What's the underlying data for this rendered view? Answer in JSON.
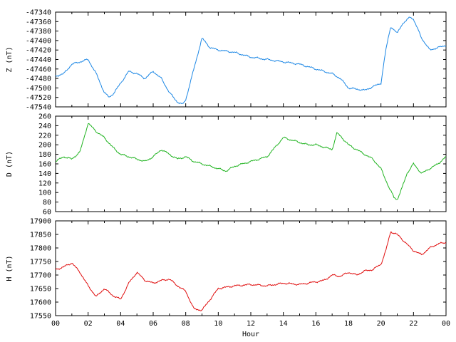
{
  "chart_data": [
    {
      "type": "line",
      "ylabel": "Z (nT)",
      "ylim": [
        -47540,
        -47340
      ],
      "yticks": [
        -47340,
        -47360,
        -47380,
        -47400,
        -47420,
        -47440,
        -47460,
        -47480,
        -47500,
        -47520,
        -47540
      ],
      "xlim": [
        0,
        24
      ],
      "series": [
        {
          "color": "#1e88e5",
          "x": [
            0,
            0.5,
            1.0,
            1.5,
            2.0,
            2.5,
            3.0,
            3.3,
            3.6,
            4.0,
            4.5,
            5.0,
            5.5,
            6.0,
            6.5,
            7.0,
            7.5,
            7.8,
            8.0,
            8.5,
            9.0,
            9.5,
            10.0,
            11.0,
            12.0,
            13.0,
            14.0,
            15.0,
            16.0,
            17.0,
            17.5,
            18.0,
            19.0,
            20.0,
            20.3,
            20.6,
            21.0,
            21.3,
            21.5,
            21.8,
            22.0,
            22.5,
            23.0,
            23.5,
            24.0
          ],
          "values": [
            -47475,
            -47470,
            -47450,
            -47445,
            -47440,
            -47470,
            -47510,
            -47520,
            -47510,
            -47490,
            -47465,
            -47470,
            -47480,
            -47465,
            -47480,
            -47510,
            -47530,
            -47535,
            -47525,
            -47460,
            -47395,
            -47415,
            -47420,
            -47425,
            -47435,
            -47440,
            -47445,
            -47450,
            -47460,
            -47470,
            -47480,
            -47500,
            -47505,
            -47490,
            -47420,
            -47370,
            -47385,
            -47365,
            -47360,
            -47350,
            -47355,
            -47395,
            -47420,
            -47415,
            -47410
          ]
        }
      ]
    },
    {
      "type": "line",
      "ylabel": "D (nT)",
      "ylim": [
        60,
        260
      ],
      "yticks": [
        260,
        240,
        220,
        200,
        180,
        160,
        140,
        120,
        100,
        80,
        60
      ],
      "xlim": [
        0,
        24
      ],
      "series": [
        {
          "color": "#22b422",
          "x": [
            0,
            0.5,
            1.0,
            1.5,
            2.0,
            2.3,
            2.6,
            3.0,
            3.5,
            4.0,
            4.5,
            5.0,
            5.5,
            6.0,
            6.5,
            7.0,
            7.5,
            8.0,
            8.5,
            9.0,
            9.5,
            10.0,
            10.5,
            11.0,
            11.5,
            12.0,
            12.5,
            13.0,
            13.5,
            14.0,
            14.5,
            15.0,
            15.5,
            16.0,
            16.5,
            17.0,
            17.3,
            17.6,
            18.0,
            18.5,
            19.0,
            19.5,
            20.0,
            20.5,
            20.8,
            21.0,
            21.3,
            21.6,
            22.0,
            22.5,
            23.0,
            23.5,
            24.0
          ],
          "values": [
            165,
            175,
            170,
            185,
            245,
            235,
            225,
            215,
            195,
            180,
            175,
            170,
            165,
            175,
            190,
            180,
            170,
            175,
            165,
            160,
            155,
            150,
            145,
            155,
            160,
            165,
            170,
            175,
            195,
            215,
            210,
            205,
            200,
            200,
            195,
            190,
            225,
            215,
            200,
            190,
            180,
            170,
            150,
            110,
            90,
            85,
            110,
            140,
            160,
            140,
            150,
            160,
            175
          ]
        }
      ]
    },
    {
      "type": "line",
      "ylabel": "H (nT)",
      "xlabel": "Hour",
      "ylim": [
        17550,
        17900
      ],
      "yticks": [
        17900,
        17850,
        17800,
        17750,
        17700,
        17650,
        17600,
        17550
      ],
      "xlim": [
        0,
        24
      ],
      "xticks": [
        "00",
        "02",
        "04",
        "06",
        "08",
        "10",
        "12",
        "14",
        "16",
        "18",
        "20",
        "22",
        "00"
      ],
      "series": [
        {
          "color": "#e01010",
          "x": [
            0,
            0.5,
            1.0,
            1.5,
            2.0,
            2.5,
            3.0,
            3.5,
            4.0,
            4.5,
            5.0,
            5.5,
            6.0,
            6.5,
            7.0,
            7.5,
            8.0,
            8.5,
            9.0,
            9.5,
            10.0,
            10.5,
            11.0,
            12.0,
            13.0,
            14.0,
            15.0,
            16.0,
            16.5,
            17.0,
            17.5,
            18.0,
            18.5,
            19.0,
            19.5,
            20.0,
            20.3,
            20.6,
            21.0,
            21.5,
            22.0,
            22.5,
            23.0,
            23.5,
            24.0
          ],
          "values": [
            17720,
            17730,
            17745,
            17710,
            17660,
            17620,
            17650,
            17625,
            17610,
            17670,
            17710,
            17680,
            17670,
            17680,
            17685,
            17660,
            17640,
            17575,
            17570,
            17610,
            17650,
            17655,
            17660,
            17665,
            17660,
            17670,
            17665,
            17675,
            17680,
            17700,
            17695,
            17710,
            17700,
            17715,
            17720,
            17740,
            17790,
            17860,
            17850,
            17820,
            17790,
            17775,
            17800,
            17815,
            17820
          ]
        }
      ]
    }
  ]
}
